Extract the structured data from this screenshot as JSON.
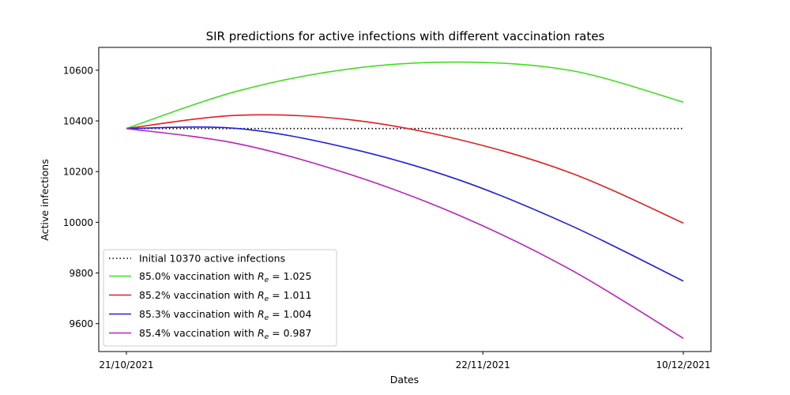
{
  "chart_data": {
    "type": "line",
    "title": "SIR predictions for active infections with different vaccination rates",
    "xlabel": "Dates",
    "ylabel": "Active infections",
    "x_start": "21/10/2021",
    "x_end": "10/12/2021",
    "xticks": [
      "21/10/2021",
      "22/11/2021",
      "10/12/2021"
    ],
    "yticks": [
      9600,
      9800,
      10000,
      10200,
      10400,
      10600
    ],
    "ylim": [
      9490,
      10690
    ],
    "grid": false,
    "legend_position": "lower-left",
    "baseline": {
      "value": 10370,
      "label": "Initial 10370 active infections",
      "color": "#000000",
      "style": "dotted"
    },
    "series": [
      {
        "name_prefix": "85.0% vaccination with ",
        "re": "1.025",
        "color": "#44dd22",
        "x": [
          "21/10/2021",
          "31/10/2021",
          "10/11/2021",
          "20/11/2021",
          "30/11/2021",
          "10/12/2021"
        ],
        "values": [
          10370,
          10518,
          10605,
          10632,
          10598,
          10474
        ]
      },
      {
        "name_prefix": "85.2% vaccination with ",
        "re": "1.011",
        "color": "#e02020",
        "x": [
          "21/10/2021",
          "31/10/2021",
          "10/11/2021",
          "20/11/2021",
          "30/11/2021",
          "10/12/2021"
        ],
        "values": [
          10370,
          10422,
          10405,
          10325,
          10193,
          9997
        ]
      },
      {
        "name_prefix": "85.3% vaccination with ",
        "re": "1.004",
        "color": "#2020dd",
        "x": [
          "21/10/2021",
          "31/10/2021",
          "10/11/2021",
          "20/11/2021",
          "30/11/2021",
          "10/12/2021"
        ],
        "values": [
          10370,
          10370,
          10292,
          10165,
          9985,
          9768
        ]
      },
      {
        "name_prefix": "85.4% vaccination with ",
        "re": "0.987",
        "color": "#bb22bb",
        "x": [
          "21/10/2021",
          "31/10/2021",
          "10/11/2021",
          "20/11/2021",
          "30/11/2021",
          "10/12/2021"
        ],
        "values": [
          10370,
          10310,
          10190,
          10025,
          9810,
          9542
        ]
      }
    ],
    "legend_subscript_symbol": "R",
    "legend_subscript": "e",
    "legend_equals": " = "
  }
}
